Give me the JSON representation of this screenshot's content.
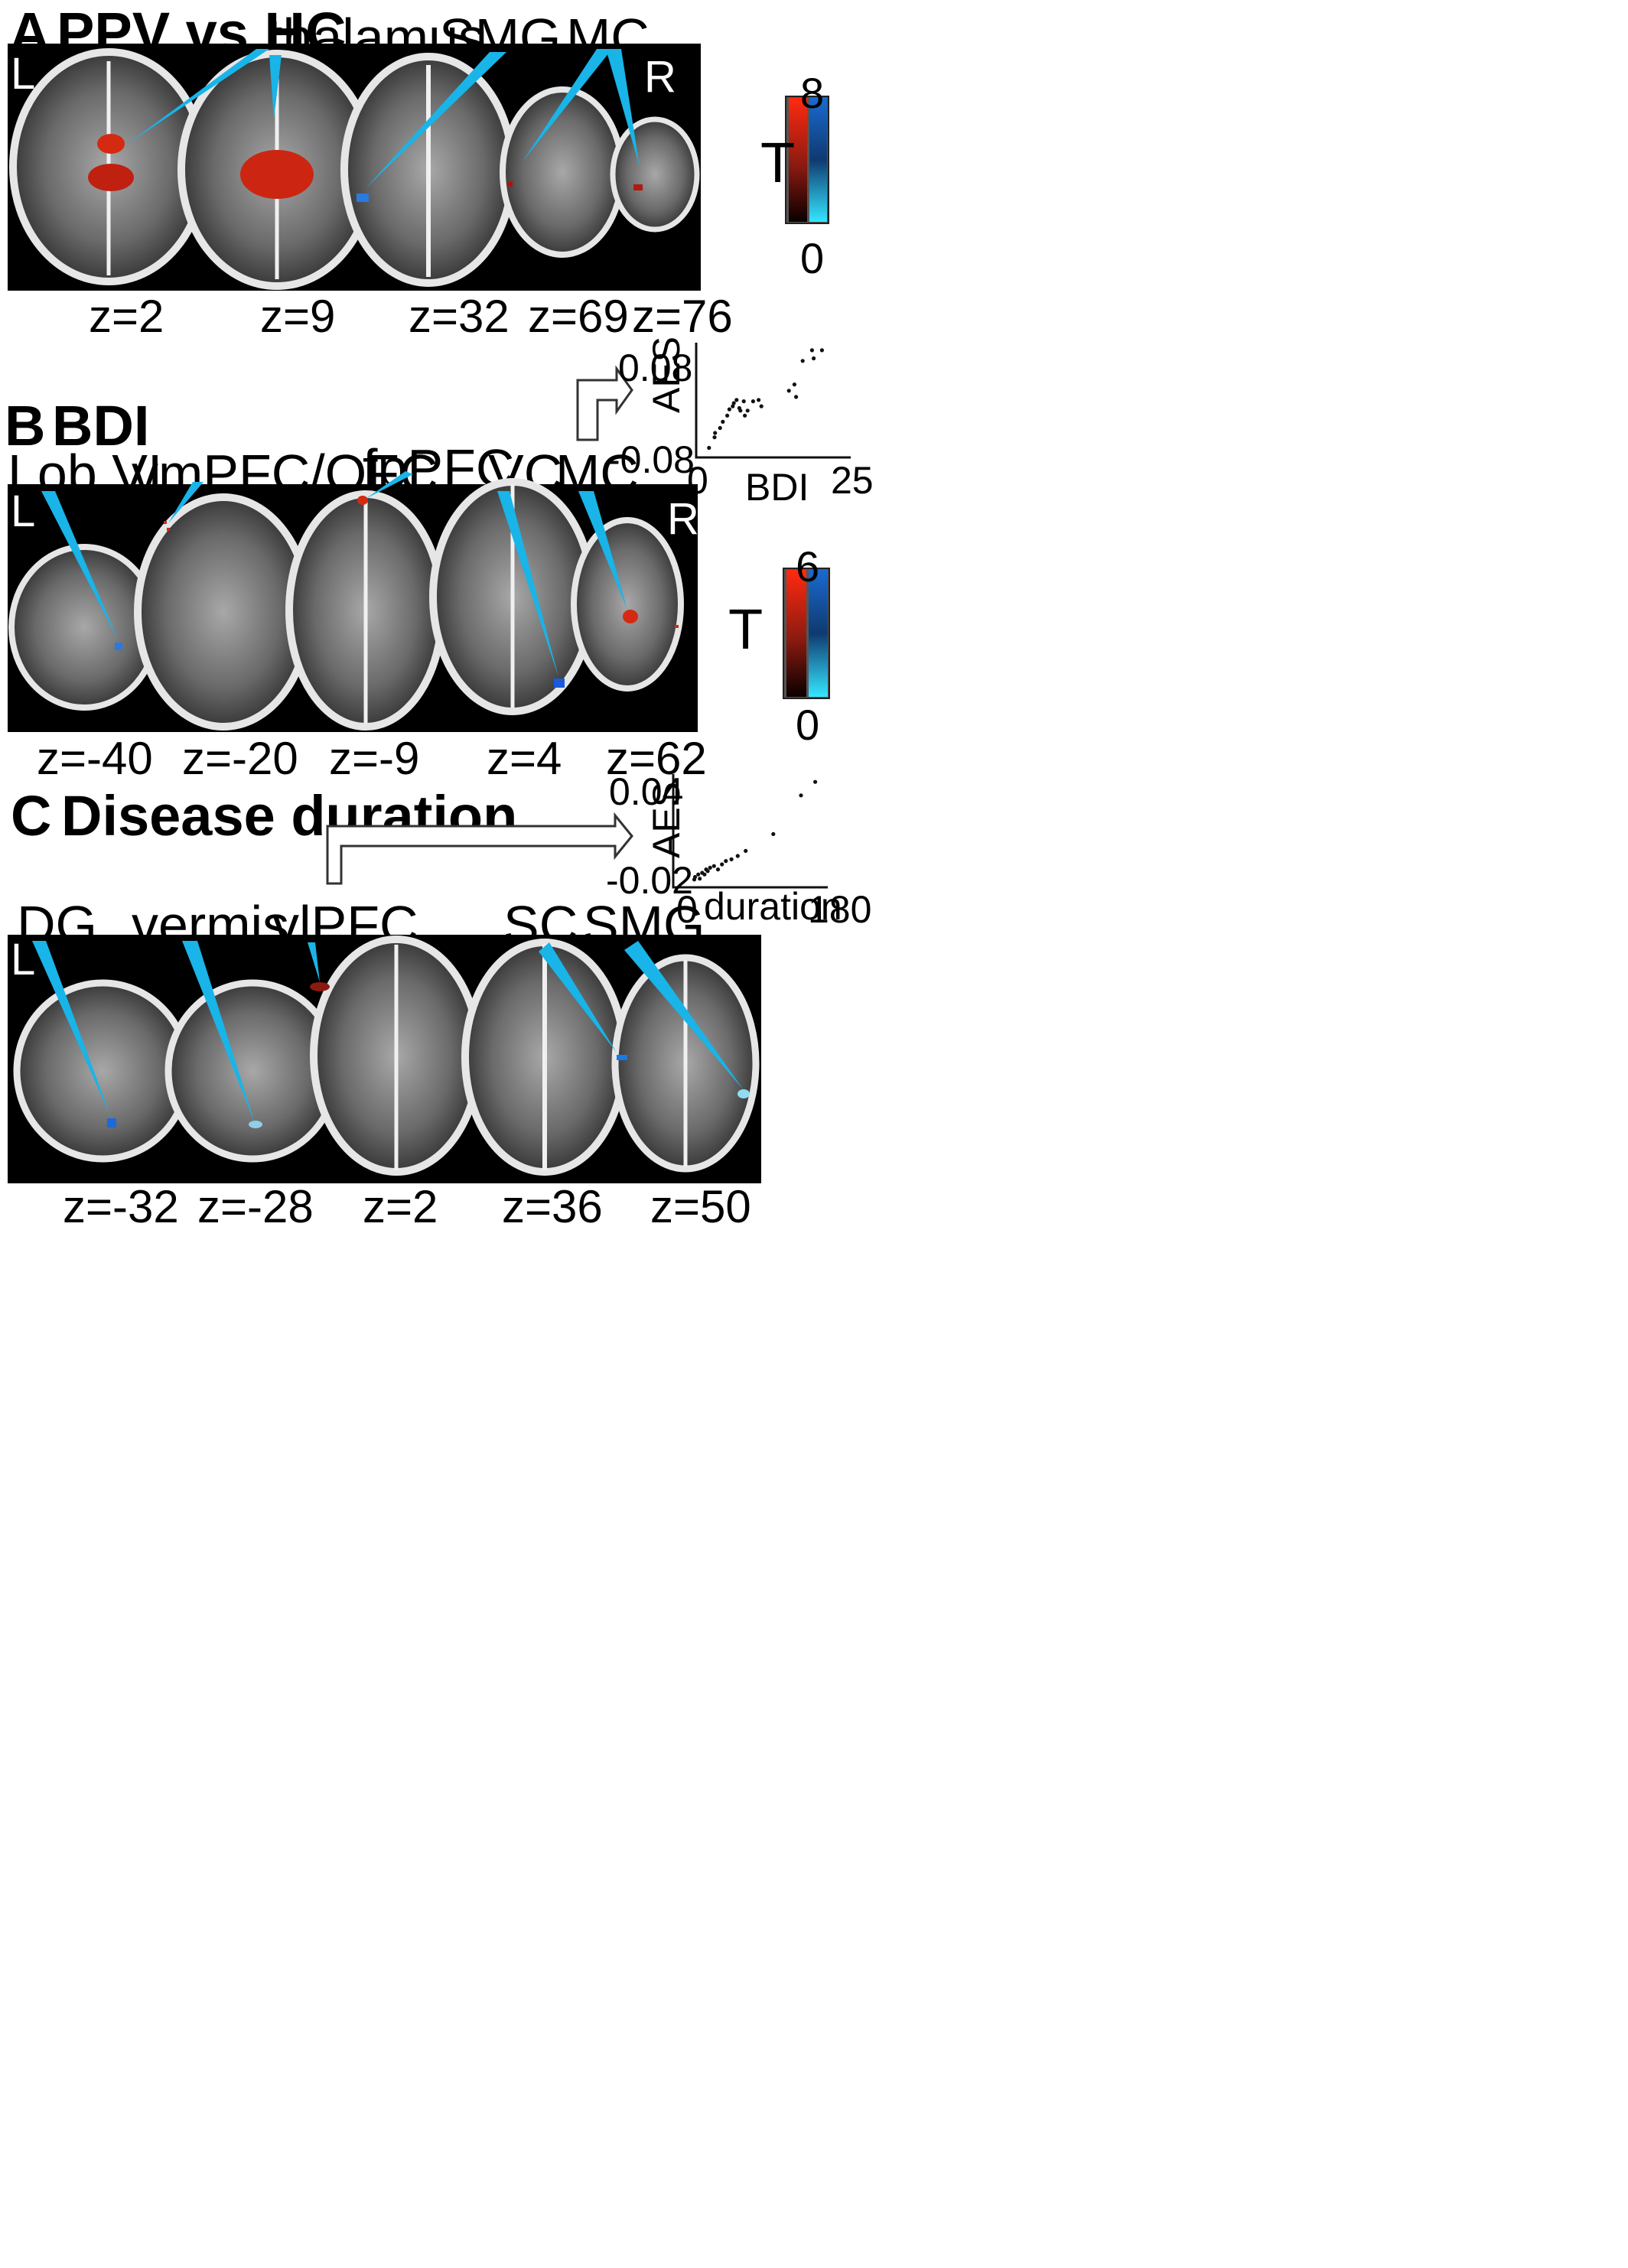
{
  "panels": [
    {
      "letter": "A",
      "title": "PPV vs HC",
      "side_left": "L",
      "side_right": "R",
      "regions": [
        "thalamus",
        "SMG",
        "MC"
      ],
      "slices": [
        "z=2",
        "z=9",
        "z=32",
        "z=69",
        "z=76"
      ],
      "colorbar": {
        "label": "T",
        "max": "8",
        "min": "0"
      }
    },
    {
      "letter": "B",
      "title": "BDI",
      "side_left": "L",
      "side_right": "R",
      "regions": [
        "Lob VI",
        "vmPFC/OFC",
        "fpPFC",
        "VC",
        "MC"
      ],
      "slices": [
        "z=-40",
        "z=-20",
        "z=-9",
        "z=4",
        "z=62"
      ],
      "colorbar": {
        "label": "T",
        "max": "6",
        "min": "0"
      }
    },
    {
      "letter": "C",
      "title": "Disease duration",
      "side_left": "L",
      "regions": [
        "DG",
        "vermis",
        "vlPFC",
        "SC",
        "SMG"
      ],
      "slices": [
        "z=-32",
        "z=-28",
        "z=2",
        "z=36",
        "z=50"
      ]
    }
  ],
  "scatter_bdi": {
    "ylabel": "AES",
    "xlabel": "BDI",
    "y_ticks": [
      "0.08",
      "-0.08"
    ],
    "x_ticks": [
      "0",
      "25"
    ]
  },
  "scatter_duration": {
    "ylabel": "AES",
    "xlabel": "duration",
    "y_ticks": [
      "0.04",
      "-0.02"
    ],
    "x_ticks": [
      "0",
      "180"
    ]
  },
  "chart_data": [
    {
      "type": "scatter",
      "xlabel": "BDI",
      "ylabel": "AES",
      "xlim": [
        0,
        25
      ],
      "ylim": [
        -0.08,
        0.08
      ],
      "points": [
        [
          1.5,
          -0.072
        ],
        [
          2.5,
          -0.055
        ],
        [
          2.6,
          -0.048
        ],
        [
          3.5,
          -0.04
        ],
        [
          4,
          -0.03
        ],
        [
          4.8,
          -0.02
        ],
        [
          5.2,
          -0.01
        ],
        [
          5.8,
          -0.005
        ],
        [
          6,
          0.0
        ],
        [
          6.5,
          0.005
        ],
        [
          7,
          -0.008
        ],
        [
          7.2,
          -0.012
        ],
        [
          7.8,
          0.003
        ],
        [
          8,
          -0.02
        ],
        [
          8.5,
          -0.012
        ],
        [
          9.5,
          0.003
        ],
        [
          10.5,
          0.005
        ],
        [
          11,
          -0.005
        ],
        [
          16,
          0.02
        ],
        [
          17,
          0.03
        ],
        [
          17.3,
          0.01
        ],
        [
          18.5,
          0.068
        ],
        [
          20.2,
          0.085
        ],
        [
          20.5,
          0.072
        ],
        [
          22,
          0.085
        ]
      ]
    },
    {
      "type": "scatter",
      "xlabel": "duration",
      "ylabel": "AES",
      "xlim": [
        0,
        180
      ],
      "ylim": [
        -0.02,
        0.04
      ],
      "points": [
        [
          15,
          -0.019
        ],
        [
          16,
          -0.0175
        ],
        [
          20,
          -0.016
        ],
        [
          22,
          -0.0185
        ],
        [
          25,
          -0.015
        ],
        [
          28,
          -0.016
        ],
        [
          30,
          -0.013
        ],
        [
          32,
          -0.014
        ],
        [
          35,
          -0.012
        ],
        [
          40,
          -0.011
        ],
        [
          45,
          -0.013
        ],
        [
          50,
          -0.01
        ],
        [
          55,
          -0.008
        ],
        [
          62,
          -0.007
        ],
        [
          70,
          -0.005
        ],
        [
          80,
          -0.002
        ],
        [
          115,
          0.008
        ],
        [
          150,
          0.031
        ],
        [
          168,
          0.039
        ]
      ]
    }
  ]
}
